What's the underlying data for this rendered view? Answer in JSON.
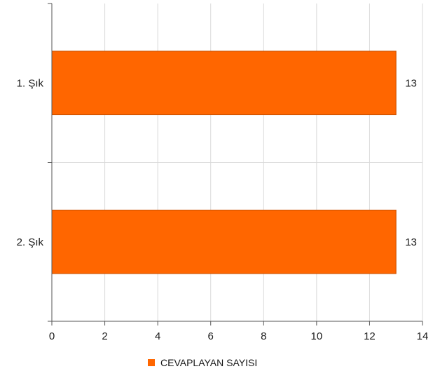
{
  "chart_data": {
    "type": "bar",
    "orientation": "horizontal",
    "categories": [
      "1. Şık",
      "2. Şık"
    ],
    "series": [
      {
        "name": "CEVAPLAYAN SAYISI",
        "values": [
          13,
          13
        ],
        "color": "#ff6600"
      }
    ],
    "data_labels": [
      "13",
      "13"
    ],
    "xlim": [
      0,
      14
    ],
    "x_ticks": [
      0,
      2,
      4,
      6,
      8,
      10,
      12,
      14
    ],
    "grid": true,
    "legend": {
      "position": "bottom",
      "label": "CEVAPLAYAN SAYISI"
    }
  },
  "colors": {
    "bar": "#ff6600",
    "bar_border": "#c85000",
    "grid": "#d9d9d9",
    "axis": "#555555"
  }
}
